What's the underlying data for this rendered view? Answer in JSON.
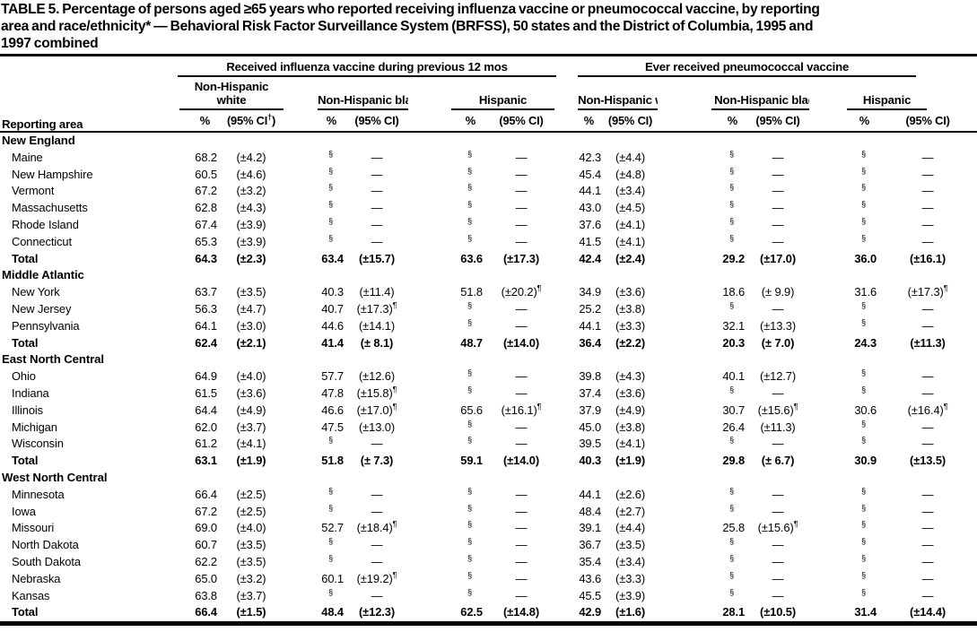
{
  "title_lines": [
    "TABLE 5. Percentage of persons aged ≥65 years who reported receiving influenza vaccine or pneumococcal vaccine, by reporting",
    "area and race/ethnicity* — Behavioral Risk Factor Surveillance System (BRFSS), 50 states and the District of Columbia, 1995 and",
    "1997 combined"
  ],
  "table": {
    "reporting_area_label": "Reporting area",
    "groups": [
      {
        "label": "Received influenza vaccine during previous 12 mos",
        "subgroups": [
          "Non-Hispanic white",
          "Non-Hispanic black",
          "Hispanic"
        ]
      },
      {
        "label": "Ever received pneumococcal vaccine",
        "subgroups": [
          "Non-Hispanic white",
          "Non-Hispanic black",
          "Hispanic"
        ]
      }
    ],
    "col_headers": {
      "pct": "%",
      "ci": "(95% CI)",
      "ci_first_pre": "(95% CI",
      "ci_first_sup": "†",
      "ci_first_post": ")"
    },
    "missing_value_symbol": "§",
    "wide_ci_symbol": "¶",
    "sections": [
      {
        "name": "New England",
        "rows": [
          {
            "area": "Maine",
            "bold": false,
            "cells": [
              "68.2",
              "(±4.2)",
              "§",
              "—",
              "§",
              "—",
              "42.3",
              "(±4.4)",
              "§",
              "—",
              "§",
              "—"
            ]
          },
          {
            "area": "New Hampshire",
            "bold": false,
            "cells": [
              "60.5",
              "(±4.6)",
              "§",
              "—",
              "§",
              "—",
              "45.4",
              "(±4.8)",
              "§",
              "—",
              "§",
              "—"
            ]
          },
          {
            "area": "Vermont",
            "bold": false,
            "cells": [
              "67.2",
              "(±3.2)",
              "§",
              "—",
              "§",
              "—",
              "44.1",
              "(±3.4)",
              "§",
              "—",
              "§",
              "—"
            ]
          },
          {
            "area": "Massachusetts",
            "bold": false,
            "cells": [
              "62.8",
              "(±4.3)",
              "§",
              "—",
              "§",
              "—",
              "43.0",
              "(±4.5)",
              "§",
              "—",
              "§",
              "—"
            ]
          },
          {
            "area": "Rhode Island",
            "bold": false,
            "cells": [
              "67.4",
              "(±3.9)",
              "§",
              "—",
              "§",
              "—",
              "37.6",
              "(±4.1)",
              "§",
              "—",
              "§",
              "—"
            ]
          },
          {
            "area": "Connecticut",
            "bold": false,
            "cells": [
              "65.3",
              "(±3.9)",
              "§",
              "—",
              "§",
              "—",
              "41.5",
              "(±4.1)",
              "§",
              "—",
              "§",
              "—"
            ]
          },
          {
            "area": "Total",
            "bold": true,
            "cells": [
              "64.3",
              "(±2.3)",
              "63.4",
              "(±15.7)",
              "63.6",
              "(±17.3)",
              "42.4",
              "(±2.4)",
              "29.2",
              "(±17.0)",
              "36.0",
              "(±16.1)"
            ]
          }
        ]
      },
      {
        "name": "Middle Atlantic",
        "rows": [
          {
            "area": "New York",
            "bold": false,
            "cells": [
              "63.7",
              "(±3.5)",
              "40.3",
              "(±11.4)",
              "51.8",
              "(±20.2)¶",
              "34.9",
              "(±3.6)",
              "18.6",
              "(± 9.9)",
              "31.6",
              "(±17.3)¶"
            ]
          },
          {
            "area": "New Jersey",
            "bold": false,
            "cells": [
              "56.3",
              "(±4.7)",
              "40.7",
              "(±17.3)¶",
              "§",
              "—",
              "25.2",
              "(±3.8)",
              "§",
              "—",
              "§",
              "—"
            ]
          },
          {
            "area": "Pennsylvania",
            "bold": false,
            "cells": [
              "64.1",
              "(±3.0)",
              "44.6",
              "(±14.1)",
              "§",
              "—",
              "44.1",
              "(±3.3)",
              "32.1",
              "(±13.3)",
              "§",
              "—"
            ]
          },
          {
            "area": "Total",
            "bold": true,
            "cells": [
              "62.4",
              "(±2.1)",
              "41.4",
              "(± 8.1)",
              "48.7",
              "(±14.0)",
              "36.4",
              "(±2.2)",
              "20.3",
              "(± 7.0)",
              "24.3",
              "(±11.3)"
            ]
          }
        ]
      },
      {
        "name": "East North Central",
        "rows": [
          {
            "area": "Ohio",
            "bold": false,
            "cells": [
              "64.9",
              "(±4.0)",
              "57.7",
              "(±12.6)",
              "§",
              "—",
              "39.8",
              "(±4.3)",
              "40.1",
              "(±12.7)",
              "§",
              "—"
            ]
          },
          {
            "area": "Indiana",
            "bold": false,
            "cells": [
              "61.5",
              "(±3.6)",
              "47.8",
              "(±15.8)¶",
              "§",
              "—",
              "37.4",
              "(±3.6)",
              "§",
              "—",
              "§",
              "—"
            ]
          },
          {
            "area": "Illinois",
            "bold": false,
            "cells": [
              "64.4",
              "(±4.9)",
              "46.6",
              "(±17.0)¶",
              "65.6",
              "(±16.1)¶",
              "37.9",
              "(±4.9)",
              "30.7",
              "(±15.6)¶",
              "30.6",
              "(±16.4)¶"
            ]
          },
          {
            "area": "Michigan",
            "bold": false,
            "cells": [
              "62.0",
              "(±3.7)",
              "47.5",
              "(±13.0)",
              "§",
              "—",
              "45.0",
              "(±3.8)",
              "26.4",
              "(±11.3)",
              "§",
              "—"
            ]
          },
          {
            "area": "Wisconsin",
            "bold": false,
            "cells": [
              "61.2",
              "(±4.1)",
              "§",
              "—",
              "§",
              "—",
              "39.5",
              "(±4.1)",
              "§",
              "—",
              "§",
              "—"
            ]
          },
          {
            "area": "Total",
            "bold": true,
            "cells": [
              "63.1",
              "(±1.9)",
              "51.8",
              "(± 7.3)",
              "59.1",
              "(±14.0)",
              "40.3",
              "(±1.9)",
              "29.8",
              "(± 6.7)",
              "30.9",
              "(±13.5)"
            ]
          }
        ]
      },
      {
        "name": "West North Central",
        "rows": [
          {
            "area": "Minnesota",
            "bold": false,
            "cells": [
              "66.4",
              "(±2.5)",
              "§",
              "—",
              "§",
              "—",
              "44.1",
              "(±2.6)",
              "§",
              "—",
              "§",
              "—"
            ]
          },
          {
            "area": "Iowa",
            "bold": false,
            "cells": [
              "67.2",
              "(±2.5)",
              "§",
              "—",
              "§",
              "—",
              "48.4",
              "(±2.7)",
              "§",
              "—",
              "§",
              "—"
            ]
          },
          {
            "area": "Missouri",
            "bold": false,
            "cells": [
              "69.0",
              "(±4.0)",
              "52.7",
              "(±18.4)¶",
              "§",
              "—",
              "39.1",
              "(±4.4)",
              "25.8",
              "(±15.6)¶",
              "§",
              "—"
            ]
          },
          {
            "area": "North Dakota",
            "bold": false,
            "cells": [
              "60.7",
              "(±3.5)",
              "§",
              "—",
              "§",
              "—",
              "36.7",
              "(±3.5)",
              "§",
              "—",
              "§",
              "—"
            ]
          },
          {
            "area": "South Dakota",
            "bold": false,
            "cells": [
              "62.2",
              "(±3.5)",
              "§",
              "—",
              "§",
              "—",
              "35.4",
              "(±3.4)",
              "§",
              "—",
              "§",
              "—"
            ]
          },
          {
            "area": "Nebraska",
            "bold": false,
            "cells": [
              "65.0",
              "(±3.2)",
              "60.1",
              "(±19.2)¶",
              "§",
              "—",
              "43.6",
              "(±3.3)",
              "§",
              "—",
              "§",
              "—"
            ]
          },
          {
            "area": "Kansas",
            "bold": false,
            "cells": [
              "63.8",
              "(±3.7)",
              "§",
              "—",
              "§",
              "—",
              "45.5",
              "(±3.9)",
              "§",
              "—",
              "§",
              "—"
            ]
          },
          {
            "area": "Total",
            "bold": true,
            "cells": [
              "66.4",
              "(±1.5)",
              "48.4",
              "(±12.3)",
              "62.5",
              "(±14.8)",
              "42.9",
              "(±1.6)",
              "28.1",
              "(±10.5)",
              "31.4",
              "(±14.4)"
            ]
          }
        ]
      }
    ]
  }
}
